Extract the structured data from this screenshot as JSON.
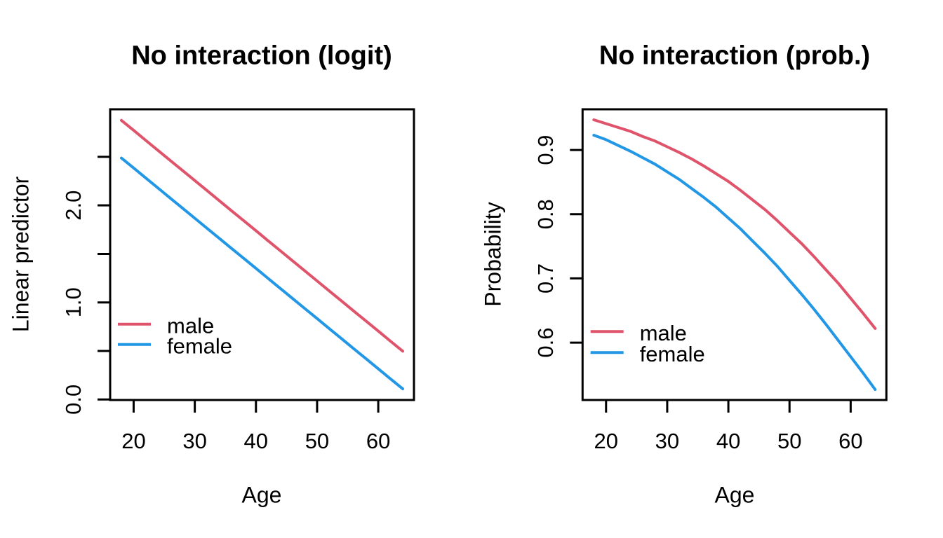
{
  "figure": {
    "background": "#ffffff",
    "text_color": "#000000"
  },
  "chart_data": [
    {
      "id": "logit",
      "type": "line",
      "title": "No interaction (logit)",
      "xlabel": "Age",
      "ylabel": "Linear predictor",
      "xlim": [
        16.16,
        65.84
      ],
      "ylim": [
        -0.005,
        2.99
      ],
      "grid": false,
      "legend_position": "bottom-left-inside",
      "x_ticks": [
        {
          "v": 20,
          "label": "20"
        },
        {
          "v": 30,
          "label": "30"
        },
        {
          "v": 40,
          "label": "40"
        },
        {
          "v": 50,
          "label": "50"
        },
        {
          "v": 60,
          "label": "60"
        }
      ],
      "y_ticks": [
        {
          "v": 0.0,
          "label": "0.0"
        },
        {
          "v": 0.5,
          "label": ""
        },
        {
          "v": 1.0,
          "label": "1.0"
        },
        {
          "v": 1.5,
          "label": ""
        },
        {
          "v": 2.0,
          "label": "2.0"
        },
        {
          "v": 2.5,
          "label": ""
        }
      ],
      "x": [
        18,
        20,
        22,
        24,
        26,
        28,
        30,
        32,
        34,
        36,
        38,
        40,
        42,
        44,
        46,
        48,
        50,
        52,
        54,
        56,
        58,
        60,
        62,
        64
      ],
      "series": [
        {
          "name": "male",
          "color": "#DF536B",
          "values": [
            2.876,
            2.773,
            2.669,
            2.566,
            2.462,
            2.359,
            2.256,
            2.152,
            2.049,
            1.945,
            1.842,
            1.739,
            1.635,
            1.532,
            1.428,
            1.325,
            1.222,
            1.118,
            1.015,
            0.911,
            0.808,
            0.705,
            0.601,
            0.498
          ]
        },
        {
          "name": "female",
          "color": "#2297E6",
          "values": [
            2.488,
            2.385,
            2.281,
            2.178,
            2.074,
            1.971,
            1.868,
            1.764,
            1.661,
            1.557,
            1.454,
            1.351,
            1.247,
            1.144,
            1.04,
            0.937,
            0.834,
            0.73,
            0.627,
            0.523,
            0.42,
            0.317,
            0.213,
            0.11
          ]
        }
      ]
    },
    {
      "id": "prob",
      "type": "line",
      "title": "No interaction (prob.)",
      "xlabel": "Age",
      "ylabel": "Probability",
      "xlim": [
        16.16,
        65.84
      ],
      "ylim": [
        0.5106,
        0.9634
      ],
      "grid": false,
      "legend_position": "bottom-left-inside",
      "x_ticks": [
        {
          "v": 20,
          "label": "20"
        },
        {
          "v": 30,
          "label": "30"
        },
        {
          "v": 40,
          "label": "40"
        },
        {
          "v": 50,
          "label": "50"
        },
        {
          "v": 60,
          "label": "60"
        }
      ],
      "y_ticks": [
        {
          "v": 0.6,
          "label": "0.6"
        },
        {
          "v": 0.7,
          "label": "0.7"
        },
        {
          "v": 0.8,
          "label": "0.8"
        },
        {
          "v": 0.9,
          "label": "0.9"
        }
      ],
      "x": [
        18,
        20,
        22,
        24,
        26,
        28,
        30,
        32,
        34,
        36,
        38,
        40,
        42,
        44,
        46,
        48,
        50,
        52,
        54,
        56,
        58,
        60,
        62,
        64
      ],
      "series": [
        {
          "name": "male",
          "color": "#DF536B",
          "values": [
            0.947,
            0.941,
            0.935,
            0.929,
            0.921,
            0.914,
            0.905,
            0.896,
            0.886,
            0.875,
            0.863,
            0.851,
            0.837,
            0.822,
            0.807,
            0.79,
            0.772,
            0.754,
            0.734,
            0.713,
            0.692,
            0.669,
            0.646,
            0.622
          ]
        },
        {
          "name": "female",
          "color": "#2297E6",
          "values": [
            0.923,
            0.916,
            0.907,
            0.898,
            0.888,
            0.878,
            0.866,
            0.854,
            0.84,
            0.826,
            0.811,
            0.794,
            0.777,
            0.758,
            0.739,
            0.719,
            0.697,
            0.675,
            0.652,
            0.628,
            0.603,
            0.578,
            0.553,
            0.527
          ]
        }
      ]
    }
  ]
}
